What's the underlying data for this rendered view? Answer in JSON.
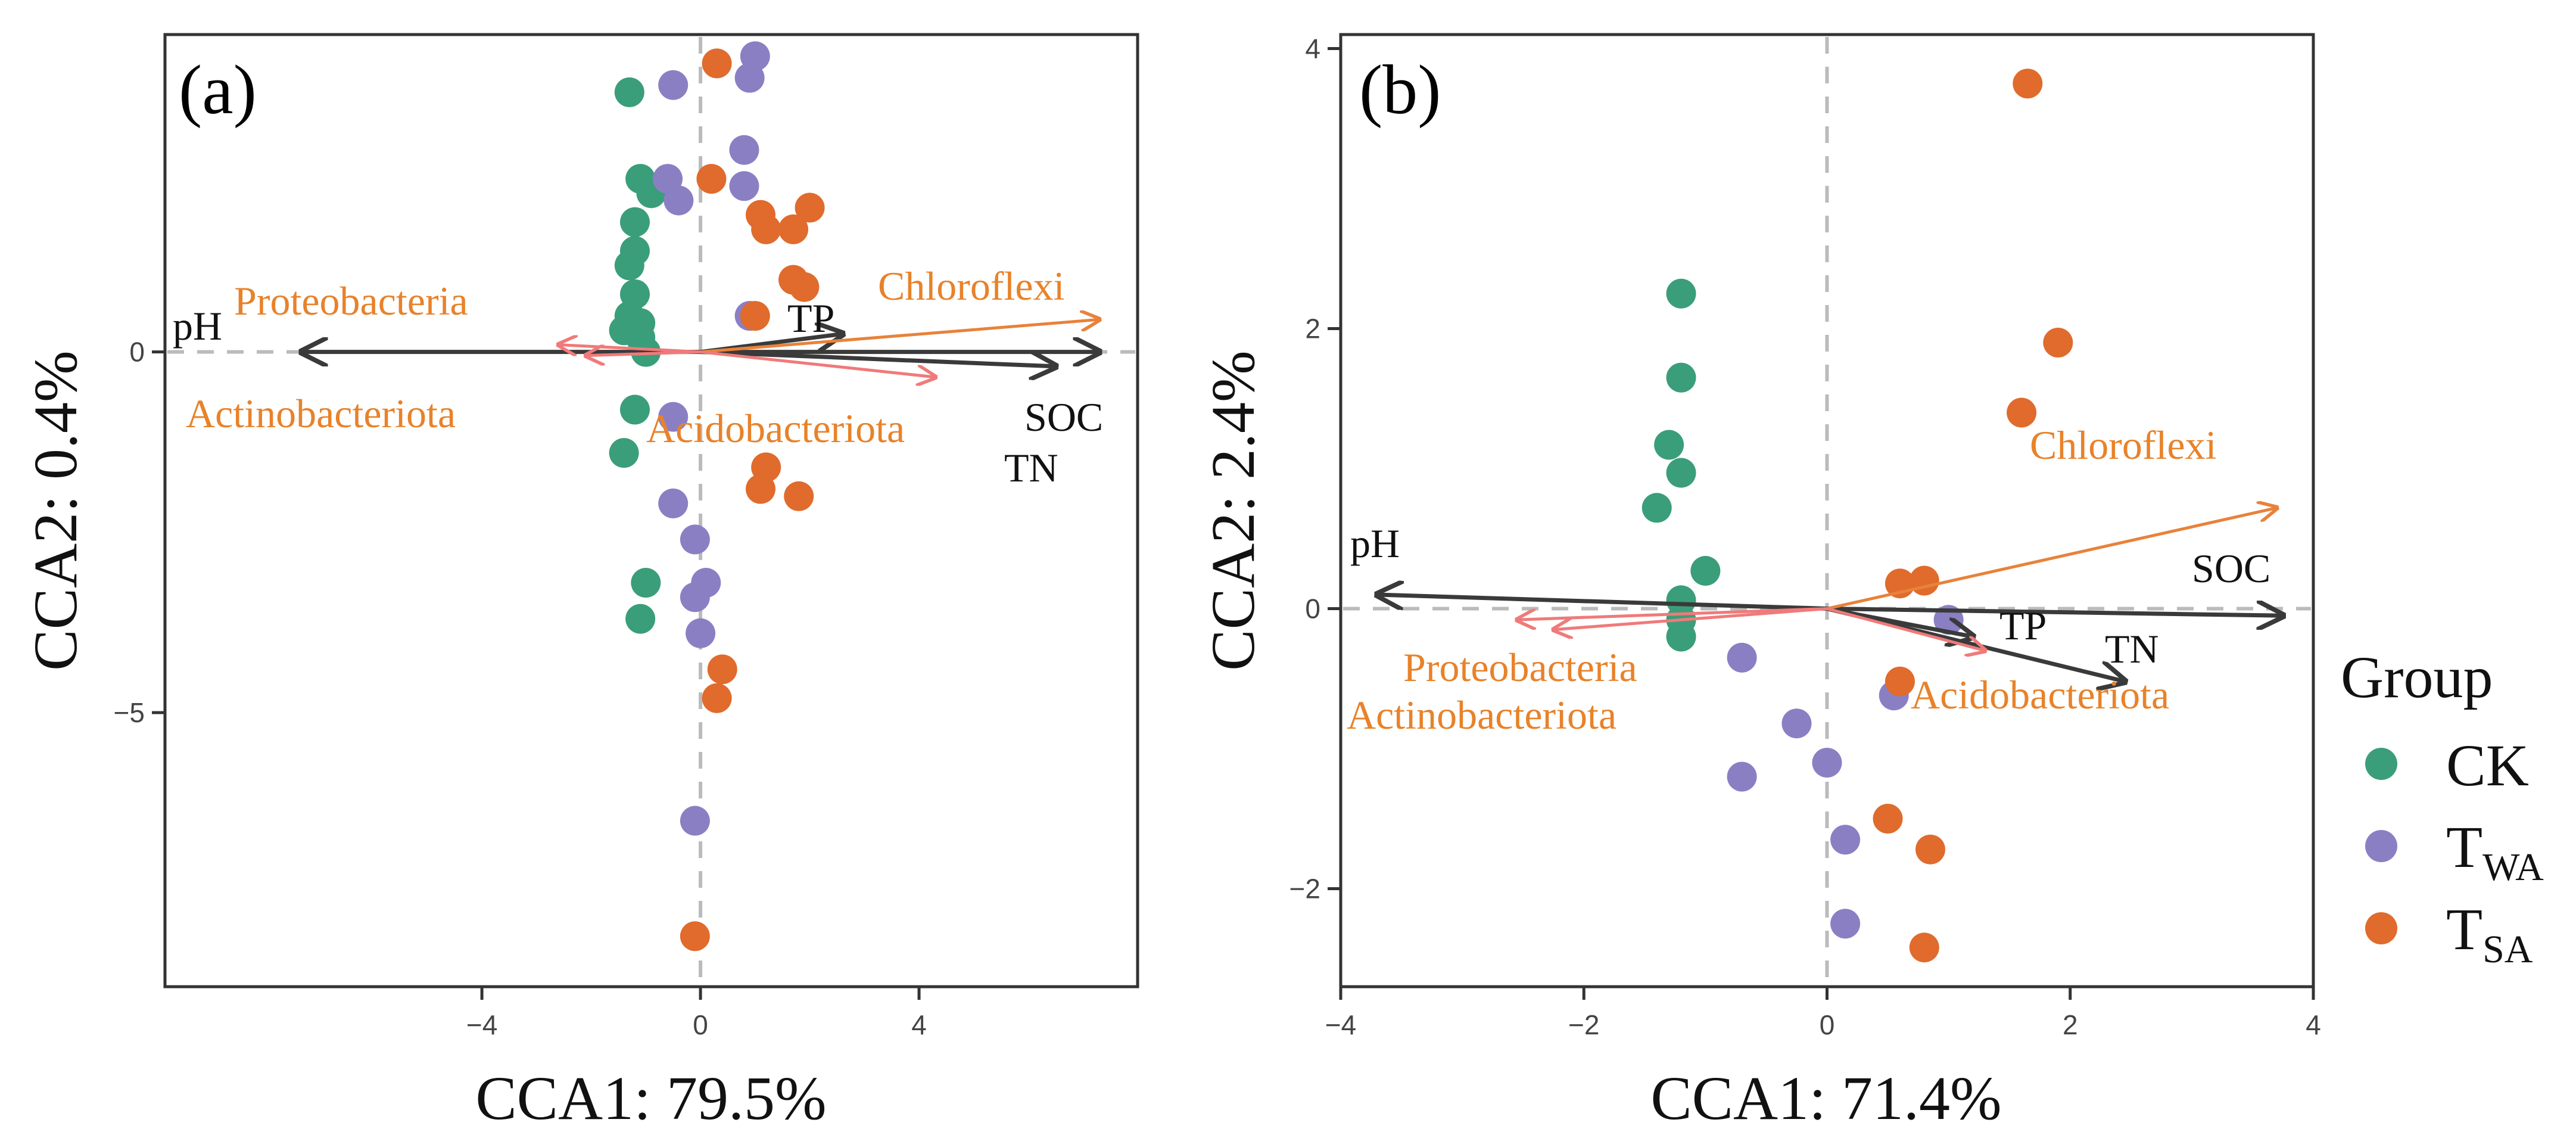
{
  "chart_data": [
    {
      "type": "scatter",
      "panel_label": "(a)",
      "xlabel": "CCA1: 79.5%",
      "ylabel": "CCA2: 0.4%",
      "xlim": [
        -9.8,
        8.0
      ],
      "ylim": [
        -8.8,
        4.4
      ],
      "xticks": [
        -4,
        0,
        4
      ],
      "yticks": [
        -5,
        0
      ],
      "grid": false,
      "series": [
        {
          "name": "CK",
          "color": "#3a9e7a",
          "points": [
            [
              -1.3,
              3.6
            ],
            [
              -1.1,
              2.4
            ],
            [
              -0.9,
              2.2
            ],
            [
              -1.2,
              1.8
            ],
            [
              -1.2,
              1.4
            ],
            [
              -1.3,
              1.2
            ],
            [
              -1.2,
              0.8
            ],
            [
              -1.3,
              0.5
            ],
            [
              -1.1,
              0.4
            ],
            [
              -1.4,
              0.3
            ],
            [
              -1.1,
              0.2
            ],
            [
              -1.0,
              0.0
            ],
            [
              -1.2,
              -0.8
            ],
            [
              -1.4,
              -1.4
            ],
            [
              -1.0,
              -3.2
            ],
            [
              -1.1,
              -3.7
            ]
          ]
        },
        {
          "name": "TWA",
          "color": "#8b7fc4",
          "points": [
            [
              1.0,
              4.1
            ],
            [
              -0.5,
              3.7
            ],
            [
              0.9,
              3.8
            ],
            [
              -0.6,
              2.4
            ],
            [
              -0.4,
              2.1
            ],
            [
              0.8,
              2.8
            ],
            [
              0.8,
              2.3
            ],
            [
              0.9,
              0.5
            ],
            [
              -0.5,
              -0.9
            ],
            [
              -0.5,
              -2.1
            ],
            [
              -0.1,
              -2.6
            ],
            [
              0.1,
              -3.2
            ],
            [
              -0.1,
              -3.4
            ],
            [
              0.0,
              -3.9
            ],
            [
              -0.1,
              -6.5
            ]
          ]
        },
        {
          "name": "TSA",
          "color": "#e06b2c",
          "points": [
            [
              0.3,
              4.0
            ],
            [
              0.2,
              2.4
            ],
            [
              1.1,
              1.9
            ],
            [
              1.2,
              1.7
            ],
            [
              2.0,
              2.0
            ],
            [
              1.7,
              1.7
            ],
            [
              1.7,
              1.0
            ],
            [
              1.9,
              0.9
            ],
            [
              1.0,
              0.5
            ],
            [
              1.2,
              -1.6
            ],
            [
              1.1,
              -1.9
            ],
            [
              1.8,
              -2.0
            ],
            [
              0.4,
              -4.4
            ],
            [
              0.3,
              -4.8
            ],
            [
              -0.1,
              -8.1
            ]
          ]
        }
      ],
      "arrows": [
        {
          "label": "pH",
          "kind": "env",
          "end": [
            -7.3,
            0.0
          ]
        },
        {
          "label": "TP",
          "kind": "env",
          "end": [
            2.6,
            0.25
          ]
        },
        {
          "label": "SOC",
          "kind": "env",
          "end": [
            7.3,
            0.0
          ]
        },
        {
          "label": "TN",
          "kind": "env",
          "end": [
            6.5,
            -0.2
          ]
        },
        {
          "label": "Proteobacteria",
          "kind": "phylum",
          "end": [
            -2.6,
            0.1
          ]
        },
        {
          "label": "Actinobacteriota",
          "kind": "phylum",
          "end": [
            -2.1,
            -0.05
          ]
        },
        {
          "label": "Chloroflexi",
          "kind": "phylum",
          "end": [
            7.3,
            0.45
          ]
        },
        {
          "label": "Acidobacteriota",
          "kind": "phylum",
          "end": [
            4.3,
            -0.35
          ]
        }
      ]
    },
    {
      "type": "scatter",
      "panel_label": "(b)",
      "xlabel": "CCA1: 71.4%",
      "ylabel": "CCA2: 2.4%",
      "xlim": [
        -4.0,
        4.0
      ],
      "ylim": [
        -2.7,
        4.1
      ],
      "xticks": [
        -4,
        -2,
        0,
        2,
        4
      ],
      "yticks": [
        -2,
        0,
        2,
        4
      ],
      "grid": false,
      "series": [
        {
          "name": "CK",
          "color": "#3a9e7a",
          "points": [
            [
              -1.2,
              2.25
            ],
            [
              -1.2,
              1.65
            ],
            [
              -1.2,
              0.97
            ],
            [
              -1.3,
              1.17
            ],
            [
              -1.4,
              0.72
            ],
            [
              -1.0,
              0.27
            ],
            [
              -1.2,
              0.06
            ],
            [
              -1.2,
              -0.08
            ],
            [
              -1.2,
              -0.2
            ]
          ]
        },
        {
          "name": "TWA",
          "color": "#8b7fc4",
          "points": [
            [
              1.0,
              -0.08
            ],
            [
              0.55,
              -0.62
            ],
            [
              -0.7,
              -0.35
            ],
            [
              -0.25,
              -0.82
            ],
            [
              -0.7,
              -1.2
            ],
            [
              0.0,
              -1.1
            ],
            [
              0.15,
              -1.65
            ],
            [
              0.15,
              -2.25
            ]
          ]
        },
        {
          "name": "TSA",
          "color": "#e06b2c",
          "points": [
            [
              1.65,
              3.75
            ],
            [
              1.9,
              1.9
            ],
            [
              1.6,
              1.4
            ],
            [
              0.8,
              0.2
            ],
            [
              0.6,
              0.18
            ],
            [
              0.6,
              -0.52
            ],
            [
              0.5,
              -1.5
            ],
            [
              0.85,
              -1.72
            ],
            [
              0.8,
              -2.42
            ]
          ]
        }
      ],
      "arrows": [
        {
          "label": "pH",
          "kind": "env",
          "end": [
            -3.7,
            0.1
          ]
        },
        {
          "label": "SOC",
          "kind": "env",
          "end": [
            3.75,
            -0.05
          ]
        },
        {
          "label": "TP",
          "kind": "env",
          "end": [
            1.2,
            -0.2
          ]
        },
        {
          "label": "TN",
          "kind": "env",
          "end": [
            2.45,
            -0.52
          ]
        },
        {
          "label": "Proteobacteria",
          "kind": "phylum",
          "end": [
            -2.55,
            -0.08
          ]
        },
        {
          "label": "Actinobacteriota",
          "kind": "phylum",
          "end": [
            -2.25,
            -0.15
          ]
        },
        {
          "label": "Chloroflexi",
          "kind": "phylum",
          "end": [
            3.7,
            0.72
          ]
        },
        {
          "label": "Acidobacteriota",
          "kind": "phylum",
          "end": [
            1.3,
            -0.3
          ]
        }
      ]
    }
  ],
  "legend": {
    "title": "Group",
    "items": [
      {
        "main": "CK",
        "sub": "",
        "color": "#3a9e7a"
      },
      {
        "main": "T",
        "sub": "WA",
        "color": "#8b7fc4"
      },
      {
        "main": "T",
        "sub": "SA",
        "color": "#e06b2c"
      }
    ]
  },
  "colors": {
    "env_arrow": "#3a3a3a",
    "phylum_arrow": "#f07a7a",
    "chloroflexi_arrow": "#e8823a",
    "phylum_label": "#e8822a",
    "axis": "#333333",
    "zero_line": "#bbbbbb"
  }
}
